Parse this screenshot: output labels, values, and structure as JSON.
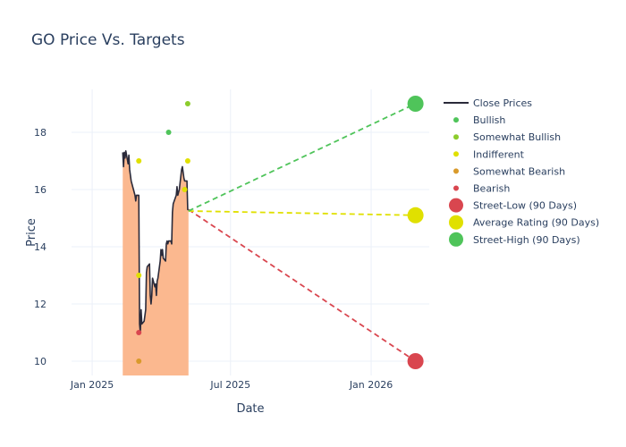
{
  "chart_data": {
    "type": "line",
    "title": "GO Price Vs. Targets",
    "xlabel": "Date",
    "ylabel": "Price",
    "xlim": [
      "2024-12-05",
      "2026-03-18"
    ],
    "ylim": [
      9.5,
      19.5
    ],
    "x_ticks": [
      {
        "date": "2025-01-01",
        "label": "Jan 2025"
      },
      {
        "date": "2025-07-01",
        "label": "Jul 2025"
      },
      {
        "date": "2026-01-01",
        "label": "Jan 2026"
      }
    ],
    "y_ticks": [
      10,
      12,
      14,
      16,
      18
    ],
    "grid": true,
    "legend_position": "right",
    "colors": {
      "close": "#2a2a3a",
      "fill": "#fbb88f",
      "bullish": "#4fc45a",
      "somewhat_bullish": "#8ccc2c",
      "indifferent": "#e0e000",
      "somewhat_bearish": "#d99a2b",
      "bearish": "#d9464f"
    },
    "close_prices": {
      "name": "Close Prices",
      "points": [
        [
          "2025-02-10",
          17.3
        ],
        [
          "2025-02-11",
          16.8
        ],
        [
          "2025-02-12",
          17.3
        ],
        [
          "2025-02-13",
          17.1
        ],
        [
          "2025-02-14",
          17.35
        ],
        [
          "2025-02-17",
          16.9
        ],
        [
          "2025-02-18",
          17.2
        ],
        [
          "2025-02-19",
          16.7
        ],
        [
          "2025-02-21",
          16.3
        ],
        [
          "2025-02-24",
          16.0
        ],
        [
          "2025-02-26",
          15.8
        ],
        [
          "2025-02-27",
          15.6
        ],
        [
          "2025-02-28",
          15.8
        ],
        [
          "2025-03-03",
          15.8
        ],
        [
          "2025-03-04",
          11.3
        ],
        [
          "2025-03-05",
          11.0
        ],
        [
          "2025-03-06",
          11.8
        ],
        [
          "2025-03-07",
          11.3
        ],
        [
          "2025-03-10",
          11.4
        ],
        [
          "2025-03-12",
          11.8
        ],
        [
          "2025-03-13",
          13.1
        ],
        [
          "2025-03-14",
          13.3
        ],
        [
          "2025-03-17",
          13.4
        ],
        [
          "2025-03-18",
          12.3
        ],
        [
          "2025-03-19",
          12.0
        ],
        [
          "2025-03-20",
          12.3
        ],
        [
          "2025-03-21",
          12.9
        ],
        [
          "2025-03-24",
          12.6
        ],
        [
          "2025-03-25",
          12.7
        ],
        [
          "2025-03-26",
          12.3
        ],
        [
          "2025-03-27",
          12.8
        ],
        [
          "2025-03-28",
          12.9
        ],
        [
          "2025-03-31",
          13.5
        ],
        [
          "2025-04-01",
          13.9
        ],
        [
          "2025-04-02",
          13.7
        ],
        [
          "2025-04-03",
          13.9
        ],
        [
          "2025-04-04",
          13.6
        ],
        [
          "2025-04-07",
          13.5
        ],
        [
          "2025-04-08",
          14.1
        ],
        [
          "2025-04-09",
          14.2
        ],
        [
          "2025-04-10",
          14.1
        ],
        [
          "2025-04-11",
          14.2
        ],
        [
          "2025-04-14",
          14.2
        ],
        [
          "2025-04-15",
          14.1
        ],
        [
          "2025-04-16",
          15.2
        ],
        [
          "2025-04-17",
          15.5
        ],
        [
          "2025-04-21",
          15.8
        ],
        [
          "2025-04-22",
          16.1
        ],
        [
          "2025-04-23",
          15.8
        ],
        [
          "2025-04-24",
          15.9
        ],
        [
          "2025-04-25",
          16.0
        ],
        [
          "2025-04-28",
          16.7
        ],
        [
          "2025-04-29",
          16.8
        ],
        [
          "2025-04-30",
          16.6
        ],
        [
          "2025-05-01",
          16.4
        ],
        [
          "2025-05-02",
          16.3
        ],
        [
          "2025-05-05",
          16.3
        ],
        [
          "2025-05-06",
          15.3
        ],
        [
          "2025-05-07",
          15.3
        ]
      ]
    },
    "ratings": [
      {
        "name": "Bullish",
        "color_key": "bullish",
        "points": [
          [
            "2025-04-11",
            18.0
          ]
        ]
      },
      {
        "name": "Somewhat Bullish",
        "color_key": "somewhat_bullish",
        "points": [
          [
            "2025-05-06",
            19.0
          ]
        ]
      },
      {
        "name": "Indifferent",
        "color_key": "indifferent",
        "points": [
          [
            "2025-03-03",
            17.0
          ],
          [
            "2025-03-03",
            13.0
          ],
          [
            "2025-05-02",
            16.0
          ],
          [
            "2025-05-06",
            17.0
          ]
        ]
      },
      {
        "name": "Somewhat Bearish",
        "color_key": "somewhat_bearish",
        "points": [
          [
            "2025-03-03",
            10.0
          ]
        ]
      },
      {
        "name": "Bearish",
        "color_key": "bearish",
        "points": [
          [
            "2025-03-03",
            11.0
          ]
        ]
      }
    ],
    "targets": [
      {
        "name": "Street-Low (90 Days)",
        "color_key": "bearish",
        "value": 10.0,
        "from": [
          "2025-05-07",
          15.3
        ],
        "date": "2026-02-28"
      },
      {
        "name": "Average Rating (90 Days)",
        "color_key": "indifferent",
        "value": 15.1,
        "from": [
          "2025-05-07",
          15.25
        ],
        "date": "2026-02-28"
      },
      {
        "name": "Street-High (90 Days)",
        "color_key": "bullish",
        "value": 19.0,
        "from": [
          "2025-05-07",
          15.25
        ],
        "date": "2026-02-28"
      }
    ]
  }
}
